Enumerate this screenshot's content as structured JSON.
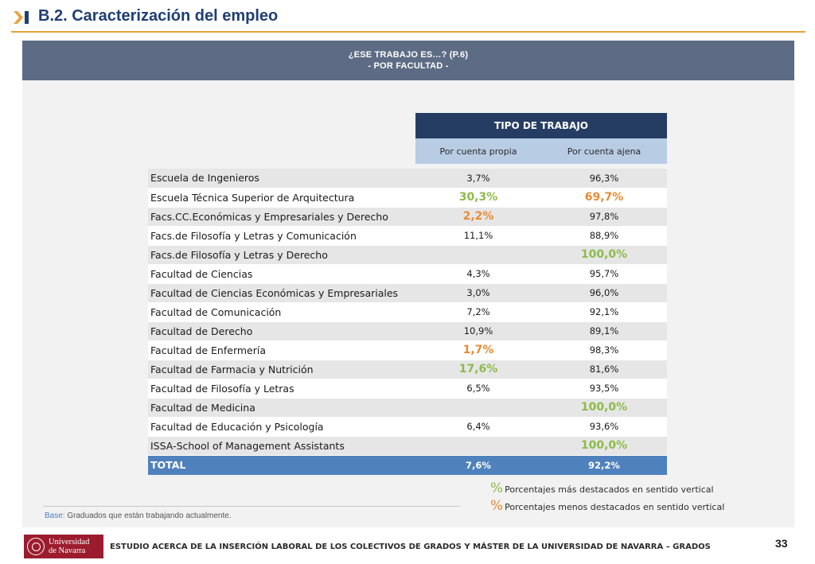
{
  "header": {
    "title": "B.2. Caracterización del empleo",
    "accent_color": "#e9a23b",
    "title_color": "#1f3e73"
  },
  "banner": {
    "line1": "¿ESE TRABAJO ES…? (P.6)",
    "line2": "-  POR FACULTAD -"
  },
  "table": {
    "group_header": "TIPO DE TRABAJO",
    "columns": [
      "Por cuenta propia",
      "Por cuenta ajena"
    ],
    "rows": [
      {
        "name": "Escuela de Ingenieros",
        "propia": "3,7%",
        "ajena": "96,3%",
        "propia_mark": "",
        "ajena_mark": ""
      },
      {
        "name": "Escuela Técnica Superior de Arquitectura",
        "propia": "30,3%",
        "ajena": "69,7%",
        "propia_mark": "high",
        "ajena_mark": "low"
      },
      {
        "name": "Facs.CC.Económicas y Empresariales y Derecho",
        "propia": "2,2%",
        "ajena": "97,8%",
        "propia_mark": "low",
        "ajena_mark": ""
      },
      {
        "name": "Facs.de Filosofía y Letras y Comunicación",
        "propia": "11,1%",
        "ajena": "88,9%",
        "propia_mark": "",
        "ajena_mark": ""
      },
      {
        "name": "Facs.de Filosofía y Letras y Derecho",
        "propia": "",
        "ajena": "100,0%",
        "propia_mark": "",
        "ajena_mark": "high"
      },
      {
        "name": "Facultad de Ciencias",
        "propia": "4,3%",
        "ajena": "95,7%",
        "propia_mark": "",
        "ajena_mark": ""
      },
      {
        "name": "Facultad de Ciencias Económicas y Empresariales",
        "propia": "3,0%",
        "ajena": "96,0%",
        "propia_mark": "",
        "ajena_mark": ""
      },
      {
        "name": "Facultad de Comunicación",
        "propia": "7,2%",
        "ajena": "92,1%",
        "propia_mark": "",
        "ajena_mark": ""
      },
      {
        "name": "Facultad de Derecho",
        "propia": "10,9%",
        "ajena": "89,1%",
        "propia_mark": "",
        "ajena_mark": ""
      },
      {
        "name": "Facultad de Enfermería",
        "propia": "1,7%",
        "ajena": "98,3%",
        "propia_mark": "low",
        "ajena_mark": ""
      },
      {
        "name": "Facultad de Farmacia y Nutrición",
        "propia": "17,6%",
        "ajena": "81,6%",
        "propia_mark": "high",
        "ajena_mark": ""
      },
      {
        "name": "Facultad de Filosofía y Letras",
        "propia": "6,5%",
        "ajena": "93,5%",
        "propia_mark": "",
        "ajena_mark": ""
      },
      {
        "name": "Facultad de Medicina",
        "propia": "",
        "ajena": "100,0%",
        "propia_mark": "",
        "ajena_mark": "high"
      },
      {
        "name": "Facultad de Educación y Psicología",
        "propia": "6,4%",
        "ajena": "93,6%",
        "propia_mark": "",
        "ajena_mark": ""
      },
      {
        "name": "ISSA-School of Management Assistants",
        "propia": "",
        "ajena": "100,0%",
        "propia_mark": "",
        "ajena_mark": "high"
      }
    ],
    "total": {
      "name": "TOTAL",
      "propia": "7,6%",
      "ajena": "92,2%"
    }
  },
  "legend": {
    "symbol": "%",
    "high": "Porcentajes más destacados en sentido vertical",
    "low": "Porcentajes menos destacados en sentido vertical",
    "high_color": "#8dbb4a",
    "low_color": "#ea8a35"
  },
  "base_note": {
    "label": "Base:",
    "text": "Graduados que están trabajando actualmente."
  },
  "footer": {
    "logo_line1": "Universidad",
    "logo_line2": "de Navarra",
    "study_title": "ESTUDIO ACERCA DE LA INSERCIÓN LABORAL DE LOS COLECTIVOS DE GRADOS Y MÁSTER DE LA UNIVERSIDAD DE NAVARRA – GRADOS",
    "page_number": "33"
  }
}
